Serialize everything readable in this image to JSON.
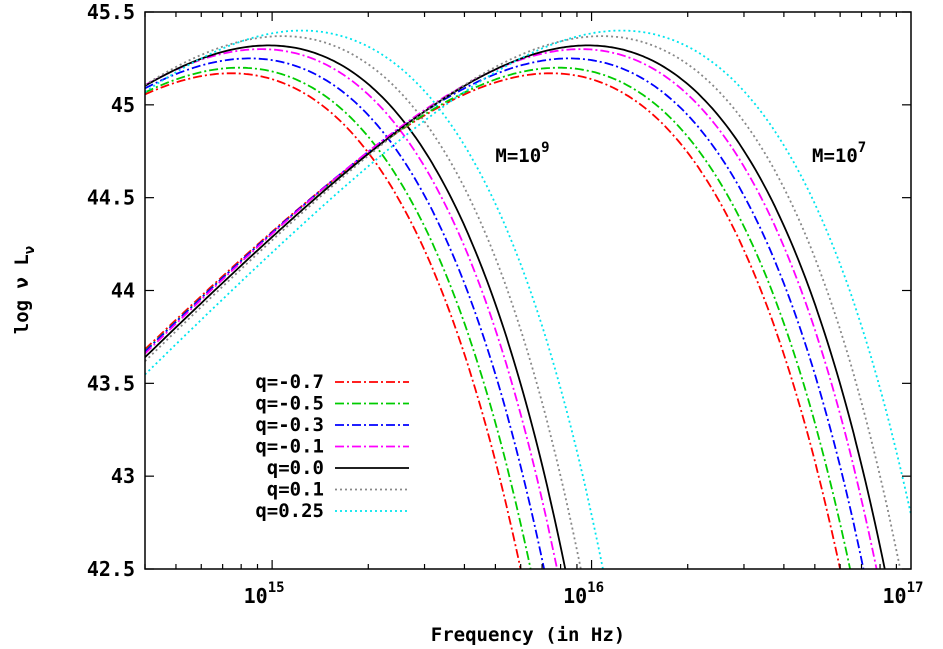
{
  "chart_data": {
    "type": "line",
    "title": "",
    "xlabel": "Frequency (in Hz)",
    "ylabel": "log ν L_ν",
    "ylabel_parts": {
      "main": "log ν L",
      "sub": "ν"
    },
    "x_scale": "log",
    "xlim": [
      400000000000000.0,
      1e+17
    ],
    "ylim": [
      42.5,
      45.5
    ],
    "grid": false,
    "legend_position": "bottom-left",
    "x_ticks": [
      {
        "value": 1000000000000000.0,
        "base": "10",
        "exp": "15"
      },
      {
        "value": 1e+16,
        "base": "10",
        "exp": "16"
      },
      {
        "value": 1e+17,
        "base": "10",
        "exp": "17"
      }
    ],
    "y_ticks": [
      {
        "value": 42.5,
        "label": "42.5"
      },
      {
        "value": 43,
        "label": "43"
      },
      {
        "value": 43.5,
        "label": "43.5"
      },
      {
        "value": 44,
        "label": "44"
      },
      {
        "value": 44.5,
        "label": "44.5"
      },
      {
        "value": 45,
        "label": "45"
      },
      {
        "value": 45.5,
        "label": "45.5"
      }
    ],
    "annotations": [
      {
        "base": "M=10",
        "exp": "9",
        "x": 5000000000000000.0,
        "y": 44.73
      },
      {
        "base": "M=10",
        "exp": "7",
        "x": 4.9e+16,
        "y": 44.73
      }
    ],
    "series": [
      {
        "name": "q=-0.7",
        "color": "#ff0000",
        "dash": "dashdot",
        "peak": 45.17,
        "nu_peak_scale": 0.98,
        "nu_cut_scale": 0.73
      },
      {
        "name": "q=-0.5",
        "color": "#00cc00",
        "dash": "dashdot",
        "peak": 45.2,
        "nu_peak_scale": 1.02,
        "nu_cut_scale": 0.78
      },
      {
        "name": "q=-0.3",
        "color": "#0000ff",
        "dash": "dashdot",
        "peak": 45.25,
        "nu_peak_scale": 1.08,
        "nu_cut_scale": 0.85
      },
      {
        "name": "q=-0.1",
        "color": "#ff00ff",
        "dash": "dashdot",
        "peak": 45.3,
        "nu_peak_scale": 1.18,
        "nu_cut_scale": 0.92
      },
      {
        "name": "q=0.0",
        "color": "#000000",
        "dash": "solid",
        "peak": 45.32,
        "nu_peak_scale": 1.25,
        "nu_cut_scale": 0.97
      },
      {
        "name": "q=0.1",
        "color": "#888888",
        "dash": "dotted",
        "peak": 45.37,
        "nu_peak_scale": 1.38,
        "nu_cut_scale": 1.07
      },
      {
        "name": "q=0.25",
        "color": "#00e5ee",
        "dash": "dotted",
        "peak": 45.4,
        "nu_peak_scale": 1.55,
        "nu_cut_scale": 1.25
      }
    ],
    "groups": [
      {
        "mass_label": "M=10^9",
        "nu_ref": 1000000000000000.0
      },
      {
        "mass_label": "M=10^7",
        "nu_ref": 1e+16
      }
    ]
  }
}
